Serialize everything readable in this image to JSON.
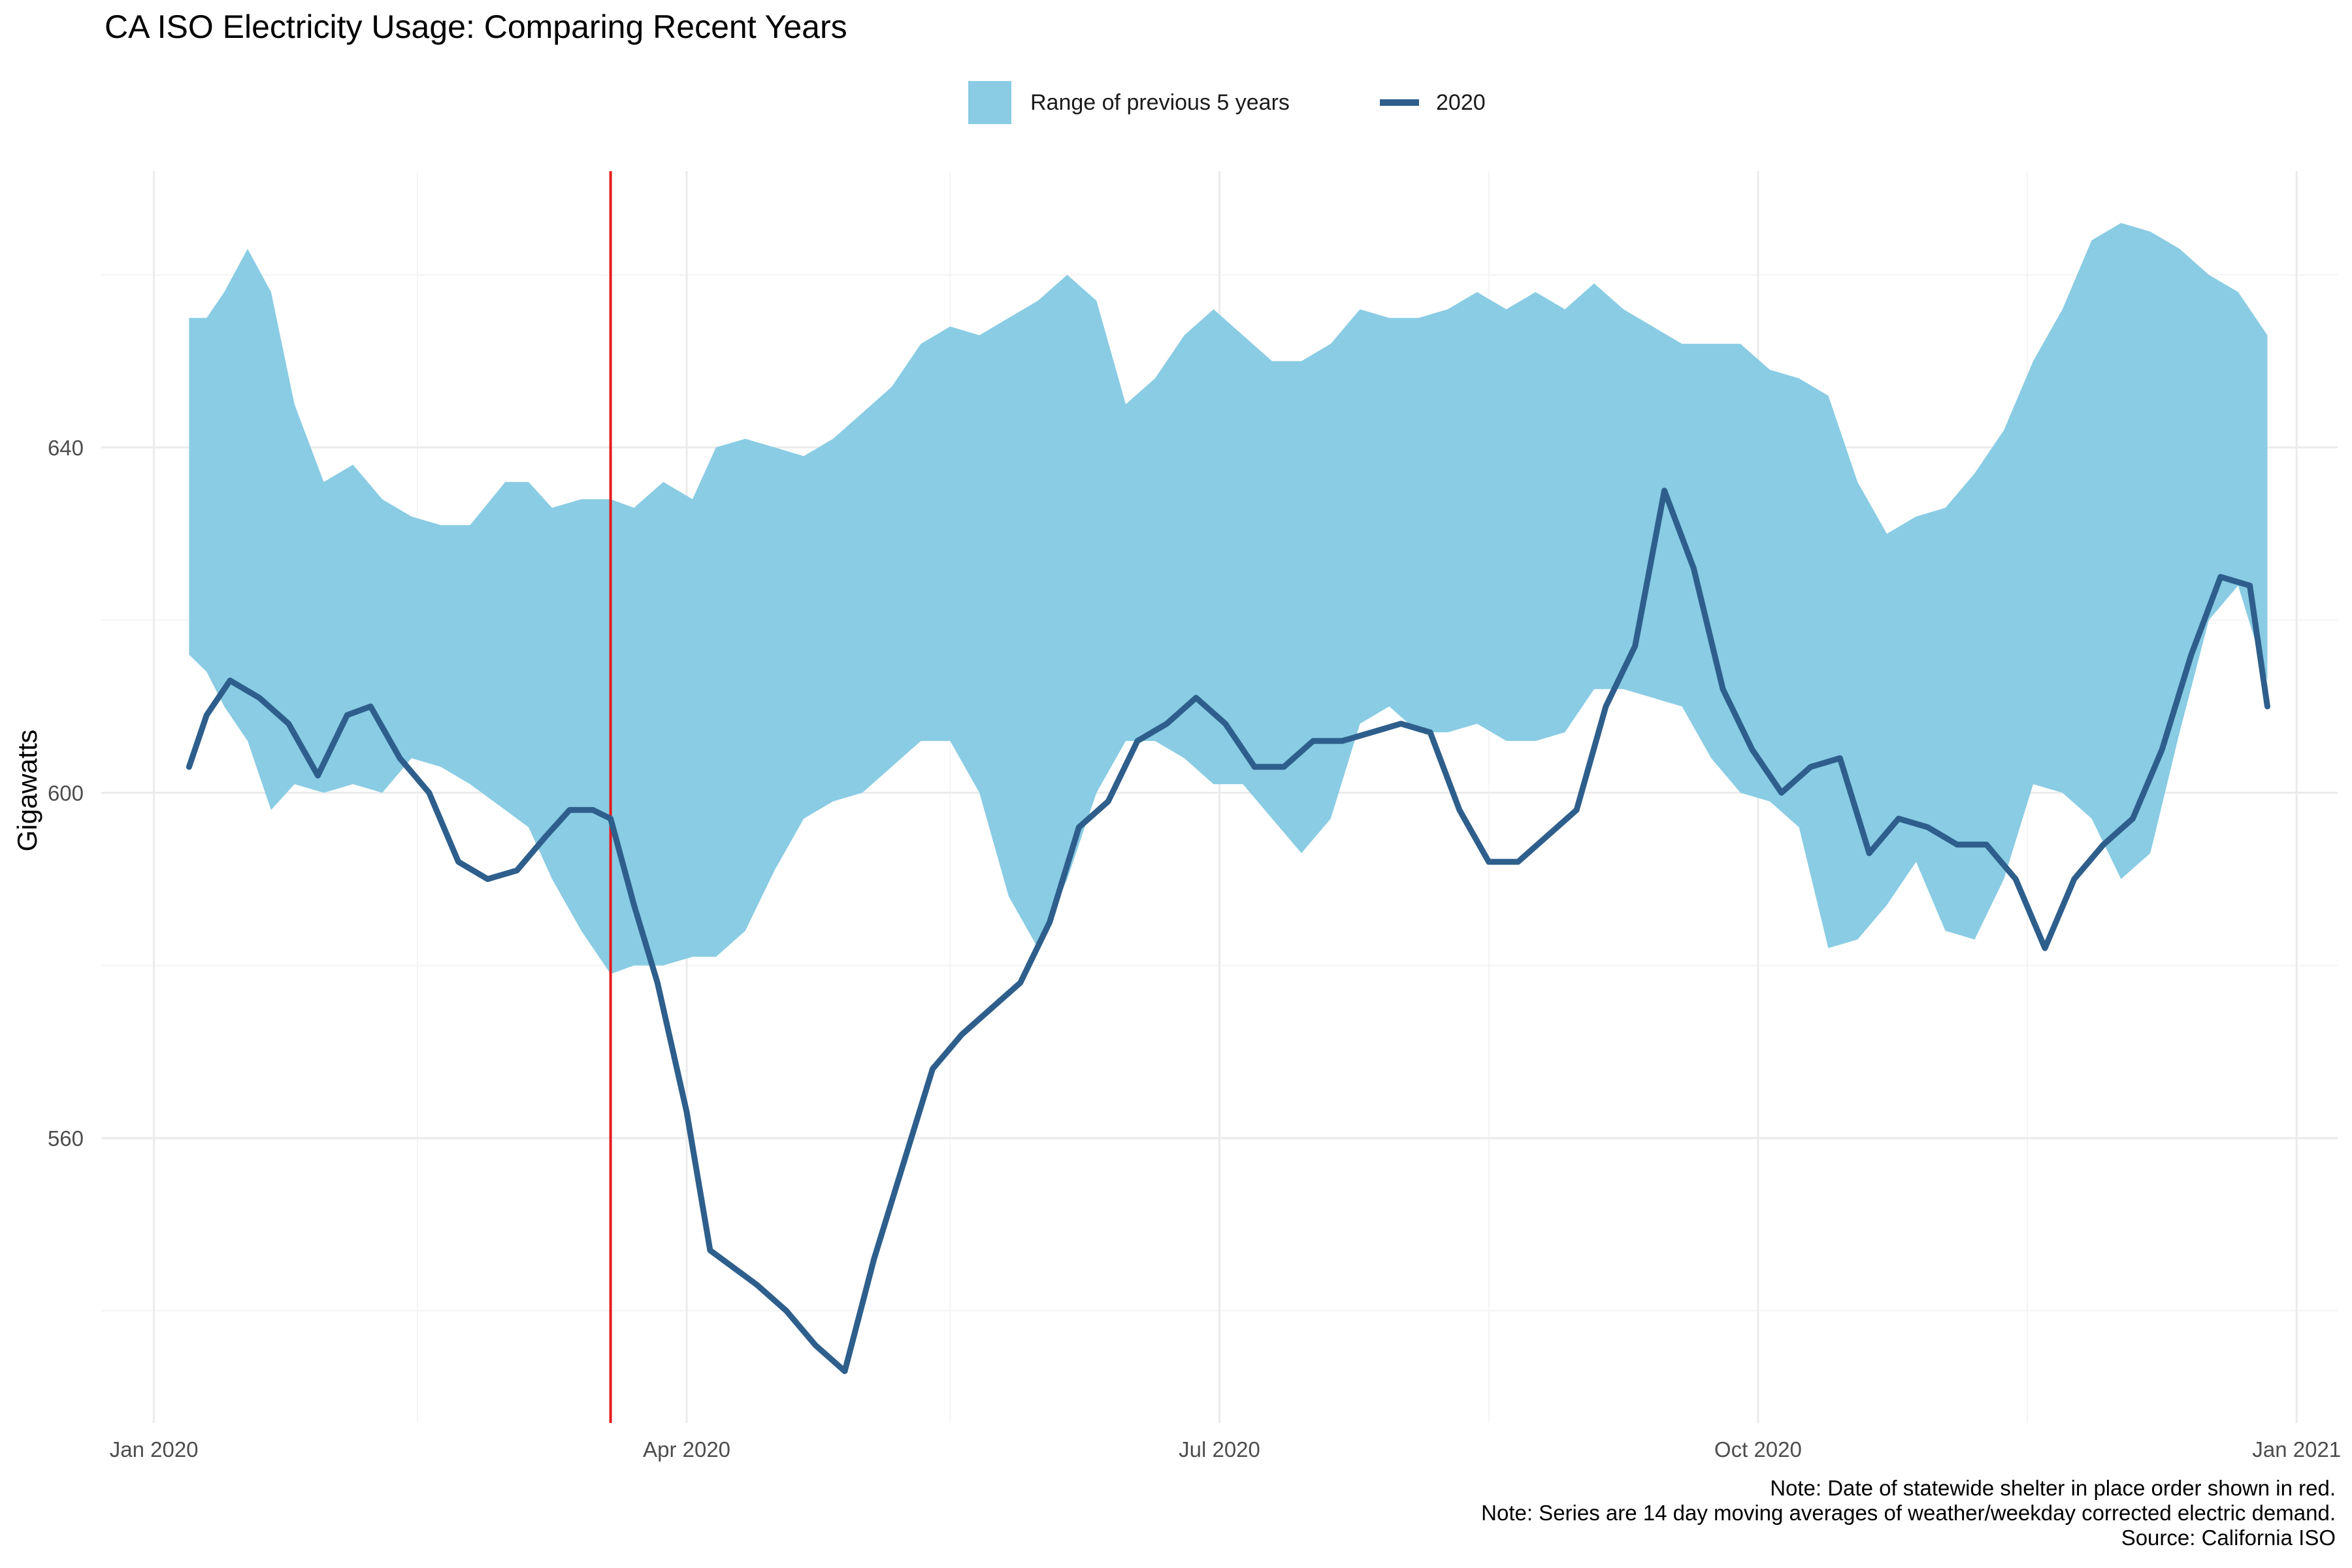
{
  "title": "CA ISO Electricity Usage: Comparing Recent Years",
  "legend": {
    "range_label": "Range of previous 5 years",
    "line_label": "2020"
  },
  "notes": [
    "Note: Date of statewide shelter in place order shown in red.",
    "Note: Series are 14 day moving averages of weather/weekday corrected electric demand.",
    "Source: California ISO"
  ],
  "colors": {
    "range_fill": "#89cce4",
    "line": "#2e5f8c",
    "marker": "#e41a1c",
    "grid_major": "#ebebeb",
    "grid_minor": "#f4f4f4"
  },
  "chart_data": {
    "type": "area",
    "title": "CA ISO Electricity Usage: Comparing Recent Years",
    "xlabel": "",
    "ylabel": "Gigawatts",
    "x_ticks": [
      {
        "date": "2020-01-01",
        "label": "Jan 2020"
      },
      {
        "date": "2020-04-01",
        "label": "Apr 2020"
      },
      {
        "date": "2020-07-01",
        "label": "Jul 2020"
      },
      {
        "date": "2020-10-01",
        "label": "Oct 2020"
      },
      {
        "date": "2021-01-01",
        "label": "Jan 2021"
      }
    ],
    "x_minor_ticks": [
      "2020-02-15",
      "2020-05-16",
      "2020-08-16",
      "2020-11-16"
    ],
    "y_ticks": [
      560,
      600,
      640
    ],
    "y_minor_ticks": [
      540,
      580,
      620,
      660
    ],
    "xlim": [
      "2019-12-23",
      "2021-01-08"
    ],
    "ylim": [
      527,
      672
    ],
    "grid": true,
    "legend_position": "top",
    "marker_line": {
      "date": "2020-03-19",
      "label": "statewide shelter in place order"
    },
    "series": [
      {
        "name": "Range of previous 5 years",
        "kind": "ribbon",
        "x": [
          "2020-01-07",
          "2020-01-10",
          "2020-01-13",
          "2020-01-17",
          "2020-01-21",
          "2020-01-25",
          "2020-01-30",
          "2020-02-04",
          "2020-02-09",
          "2020-02-14",
          "2020-02-19",
          "2020-02-24",
          "2020-03-01",
          "2020-03-05",
          "2020-03-09",
          "2020-03-14",
          "2020-03-19",
          "2020-03-23",
          "2020-03-28",
          "2020-04-02",
          "2020-04-06",
          "2020-04-11",
          "2020-04-16",
          "2020-04-21",
          "2020-04-26",
          "2020-05-01",
          "2020-05-06",
          "2020-05-11",
          "2020-05-16",
          "2020-05-21",
          "2020-05-26",
          "2020-05-31",
          "2020-06-05",
          "2020-06-10",
          "2020-06-15",
          "2020-06-20",
          "2020-06-25",
          "2020-06-30",
          "2020-07-05",
          "2020-07-10",
          "2020-07-15",
          "2020-07-20",
          "2020-07-25",
          "2020-07-30",
          "2020-08-04",
          "2020-08-09",
          "2020-08-14",
          "2020-08-19",
          "2020-08-24",
          "2020-08-29",
          "2020-09-03",
          "2020-09-08",
          "2020-09-13",
          "2020-09-18",
          "2020-09-23",
          "2020-09-28",
          "2020-10-03",
          "2020-10-08",
          "2020-10-13",
          "2020-10-18",
          "2020-10-23",
          "2020-10-28",
          "2020-11-02",
          "2020-11-07",
          "2020-11-12",
          "2020-11-17",
          "2020-11-22",
          "2020-11-27",
          "2020-12-02",
          "2020-12-07",
          "2020-12-12",
          "2020-12-17",
          "2020-12-22",
          "2020-12-27"
        ],
        "low": [
          616,
          614,
          610,
          606,
          598,
          601,
          600,
          601,
          600,
          604,
          603,
          601,
          598,
          596,
          590,
          584,
          579,
          580,
          580,
          581,
          581,
          584,
          591,
          597,
          599,
          600,
          603,
          606,
          606,
          600,
          588,
          582,
          590,
          600,
          606,
          606,
          604,
          601,
          601,
          597,
          593,
          597,
          608,
          610,
          607,
          607,
          608,
          606,
          606,
          607,
          612,
          612,
          611,
          610,
          604,
          600,
          599,
          596,
          582,
          583,
          587,
          592,
          584,
          583,
          590,
          601,
          600,
          597,
          590,
          593,
          607,
          620,
          624,
          613
        ],
        "high": [
          655,
          655,
          658,
          663,
          658,
          645,
          636,
          638,
          634,
          632,
          631,
          631,
          636,
          636,
          633,
          634,
          634,
          633,
          636,
          634,
          640,
          641,
          640,
          639,
          641,
          644,
          647,
          652,
          654,
          653,
          655,
          657,
          660,
          657,
          645,
          648,
          653,
          656,
          653,
          650,
          650,
          652,
          656,
          655,
          655,
          656,
          658,
          656,
          658,
          656,
          659,
          656,
          654,
          652,
          652,
          652,
          649,
          648,
          646,
          636,
          630,
          632,
          633,
          637,
          642,
          650,
          656,
          664,
          666,
          665,
          663,
          660,
          658,
          653
        ]
      },
      {
        "name": "2020",
        "kind": "line",
        "x": [
          "2020-01-07",
          "2020-01-10",
          "2020-01-14",
          "2020-01-19",
          "2020-01-24",
          "2020-01-29",
          "2020-02-03",
          "2020-02-07",
          "2020-02-12",
          "2020-02-17",
          "2020-02-22",
          "2020-02-27",
          "2020-03-03",
          "2020-03-08",
          "2020-03-12",
          "2020-03-16",
          "2020-03-19",
          "2020-03-23",
          "2020-03-27",
          "2020-04-01",
          "2020-04-05",
          "2020-04-09",
          "2020-04-13",
          "2020-04-18",
          "2020-04-23",
          "2020-04-28",
          "2020-05-03",
          "2020-05-08",
          "2020-05-13",
          "2020-05-18",
          "2020-05-23",
          "2020-05-28",
          "2020-06-02",
          "2020-06-07",
          "2020-06-12",
          "2020-06-17",
          "2020-06-22",
          "2020-06-27",
          "2020-07-02",
          "2020-07-07",
          "2020-07-12",
          "2020-07-17",
          "2020-07-22",
          "2020-07-27",
          "2020-08-01",
          "2020-08-06",
          "2020-08-11",
          "2020-08-16",
          "2020-08-21",
          "2020-08-26",
          "2020-08-31",
          "2020-09-05",
          "2020-09-10",
          "2020-09-15",
          "2020-09-20",
          "2020-09-25",
          "2020-09-30",
          "2020-10-05",
          "2020-10-10",
          "2020-10-15",
          "2020-10-20",
          "2020-10-25",
          "2020-10-30",
          "2020-11-04",
          "2020-11-09",
          "2020-11-14",
          "2020-11-19",
          "2020-11-24",
          "2020-11-29",
          "2020-12-04",
          "2020-12-09",
          "2020-12-14",
          "2020-12-19",
          "2020-12-24",
          "2020-12-27"
        ],
        "values": [
          603,
          609,
          613,
          611,
          608,
          602,
          609,
          610,
          604,
          600,
          592,
          590,
          591,
          595,
          598,
          598,
          597,
          587,
          578,
          563,
          547,
          545,
          543,
          540,
          536,
          533,
          546,
          557,
          568,
          572,
          575,
          578,
          585,
          596,
          599,
          606,
          608,
          611,
          608,
          603,
          603,
          606,
          606,
          607,
          608,
          607,
          598,
          592,
          592,
          595,
          598,
          610,
          617,
          635,
          626,
          612,
          605,
          600,
          603,
          604,
          593,
          597,
          596,
          594,
          594,
          590,
          582,
          590,
          594,
          597,
          605,
          616,
          625,
          624,
          610
        ]
      }
    ]
  }
}
